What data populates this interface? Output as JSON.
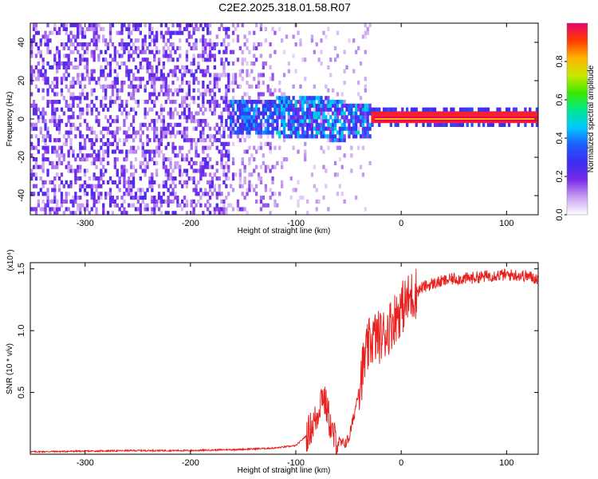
{
  "figure_title": "C2E2.2025.318.01.58.R07",
  "chart_data": [
    {
      "type": "heatmap",
      "title": "C2E2.2025.318.01.58.R07",
      "xlabel": "Height of straight line (km)",
      "ylabel": "Frequency (Hz)",
      "xlim": [
        -352,
        130
      ],
      "ylim": [
        -50,
        50
      ],
      "xticks": [
        -300,
        -200,
        -100,
        0,
        100
      ],
      "yticks": [
        -40,
        -20,
        0,
        20,
        40
      ],
      "description_segments": [
        {
          "x_from": -352,
          "x_to": -165,
          "level": "sparse purple noise across all frequencies"
        },
        {
          "x_from": -165,
          "x_to": -30,
          "level": "blue/green cluster near 0 Hz"
        },
        {
          "x_from": -30,
          "x_to": 130,
          "level": "narrow red line at 0 Hz"
        }
      ],
      "colorbar": {
        "label": "Normalized spectral amplitude",
        "range": [
          0,
          1
        ],
        "ticks": [
          0.0,
          0.2,
          0.4,
          0.6,
          0.8
        ],
        "tick_labels": [
          "0.0",
          "0.2",
          "0.4",
          "0.6",
          "0.8"
        ],
        "colormap": [
          "#ffffff",
          "#c8a0f0",
          "#7a2be8",
          "#3b2cf0",
          "#1f5cff",
          "#00c8ff",
          "#00e890",
          "#3ce800",
          "#c8e800",
          "#ffb400",
          "#ff3c00",
          "#e8006e"
        ]
      }
    },
    {
      "type": "line",
      "xlabel": "Height of straight line (km)",
      "ylabel": "SNR (10 * v/v)",
      "multiplier_label": "(x10⁴)",
      "xlim": [
        -352,
        130
      ],
      "ylim": [
        0,
        1.55
      ],
      "xticks": [
        -300,
        -200,
        -100,
        0,
        100
      ],
      "yticks": [
        0.5,
        1.0,
        1.5
      ],
      "ytick_labels": [
        "0.5",
        "1.0",
        "1.5"
      ],
      "series": [
        {
          "name": "SNR",
          "color": "#e8201e",
          "x": [
            -352,
            -300,
            -250,
            -200,
            -150,
            -120,
            -100,
            -90,
            -80,
            -75,
            -70,
            -65,
            -60,
            -55,
            -50,
            -45,
            -40,
            -35,
            -30,
            -25,
            -20,
            -15,
            -10,
            -5,
            0,
            10,
            20,
            30,
            40,
            50,
            60,
            70,
            80,
            90,
            100,
            110,
            120,
            130
          ],
          "y": [
            0.02,
            0.025,
            0.03,
            0.03,
            0.04,
            0.05,
            0.07,
            0.15,
            0.3,
            0.5,
            0.35,
            0.15,
            0.1,
            0.08,
            0.12,
            0.3,
            0.55,
            0.75,
            0.9,
            0.95,
            0.95,
            0.98,
            1.05,
            1.12,
            1.18,
            1.28,
            1.35,
            1.38,
            1.4,
            1.42,
            1.42,
            1.43,
            1.44,
            1.45,
            1.45,
            1.45,
            1.44,
            1.42
          ]
        }
      ]
    }
  ]
}
